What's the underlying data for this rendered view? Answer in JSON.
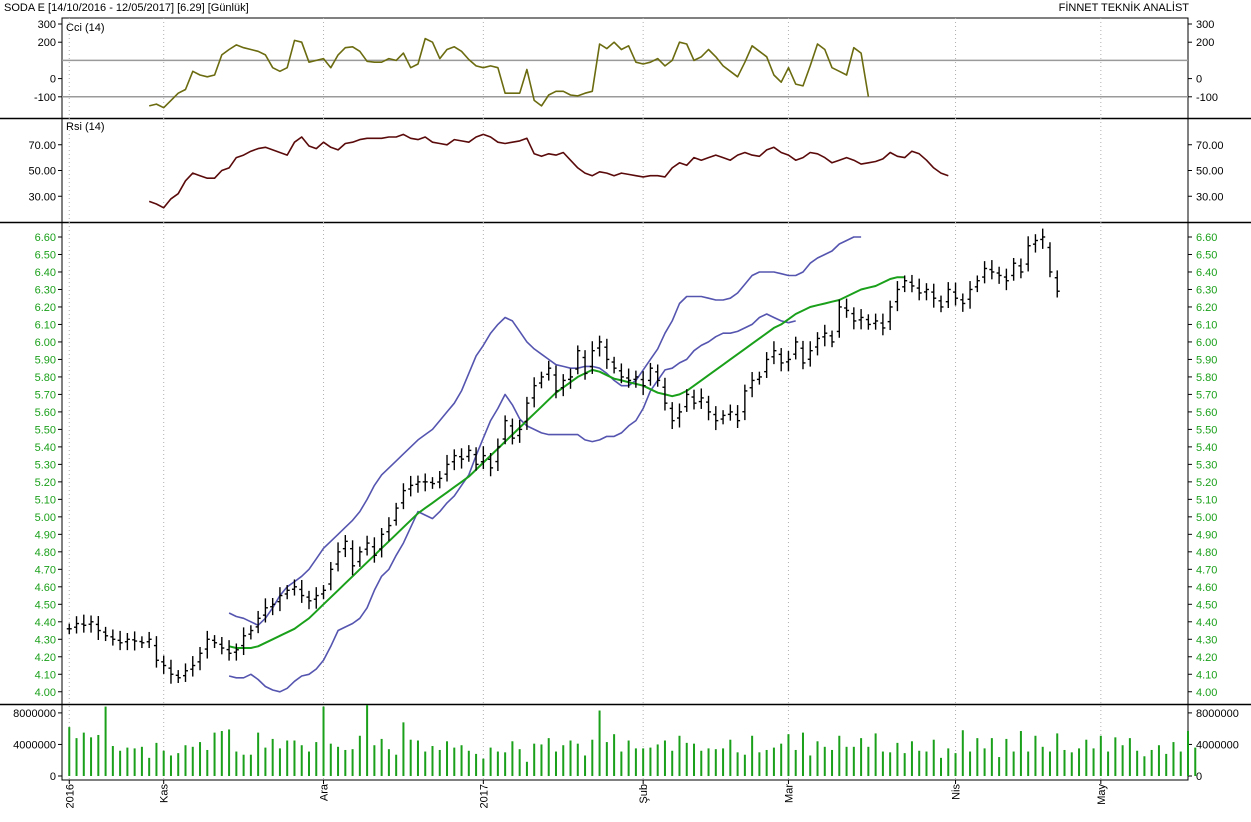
{
  "header": {
    "symbol": "SODA",
    "market": "E",
    "range": "[14/10/2016 - 12/05/2017]",
    "last": "[6.29]",
    "period": "[Günlük]",
    "brand": "FİNNET TEKNİK ANALİST"
  },
  "colors": {
    "price_bar": "#000000",
    "boll_band": "#5555b0",
    "boll_mid": "#1aa01a",
    "cci_line": "#6b6b10",
    "rsi_line": "#5a0a0a",
    "volume_bar": "#1aa01a",
    "axis_text_price": "#1aa01a",
    "ref_line": "#9a9a9a"
  },
  "chart_data": [
    {
      "type": "line",
      "panel": "CCI",
      "title": "Cci (14)",
      "ylim": [
        -200,
        300
      ],
      "ticks": [
        300,
        200,
        0,
        -100
      ],
      "reference_lines": [
        100,
        -100
      ],
      "x_start_index": 11,
      "values": [
        -150,
        -140,
        -160,
        -120,
        -80,
        -60,
        40,
        20,
        10,
        20,
        130,
        160,
        185,
        170,
        160,
        150,
        130,
        60,
        40,
        60,
        210,
        200,
        90,
        100,
        110,
        60,
        130,
        170,
        175,
        150,
        95,
        90,
        90,
        110,
        100,
        140,
        60,
        80,
        220,
        200,
        110,
        160,
        175,
        150,
        105,
        70,
        60,
        70,
        60,
        -80,
        -80,
        -80,
        50,
        -120,
        -150,
        -90,
        -70,
        -70,
        -90,
        -95,
        -80,
        -70,
        190,
        165,
        200,
        160,
        180,
        90,
        80,
        90,
        110,
        70,
        100,
        200,
        190,
        100,
        120,
        160,
        120,
        70,
        40,
        10,
        90,
        180,
        150,
        120,
        20,
        -20,
        60,
        -30,
        -40,
        70,
        190,
        160,
        60,
        40,
        20,
        170,
        140,
        -100
      ]
    },
    {
      "type": "line",
      "panel": "RSI",
      "title": "Rsi (14)",
      "ylim": [
        10,
        90
      ],
      "ticks": [
        70,
        50,
        30
      ],
      "x_start_index": 11,
      "values": [
        26,
        24,
        21,
        28,
        32,
        42,
        48,
        46,
        44,
        44,
        50,
        52,
        60,
        62,
        65,
        67,
        68,
        66,
        64,
        62,
        72,
        76,
        69,
        67,
        72,
        68,
        66,
        71,
        72,
        74,
        75,
        75,
        75,
        76,
        76,
        78,
        75,
        74,
        76,
        72,
        71,
        70,
        74,
        73,
        72,
        76,
        78,
        76,
        72,
        71,
        72,
        73,
        75,
        63,
        61,
        63,
        62,
        64,
        58,
        52,
        48,
        46,
        49,
        48,
        46,
        48,
        47,
        46,
        45,
        46,
        46,
        45,
        52,
        56,
        54,
        60,
        58,
        60,
        62,
        60,
        58,
        62,
        64,
        62,
        61,
        66,
        68,
        64,
        62,
        58,
        60,
        64,
        63,
        60,
        56,
        58,
        60,
        58,
        55,
        56,
        57,
        59,
        64,
        61,
        60,
        65,
        63,
        58,
        52,
        48,
        46
      ]
    },
    {
      "type": "bar",
      "panel": "Price",
      "subtype": "ohlc",
      "title": "",
      "ylim": [
        3.93,
        6.68
      ],
      "ticks": [
        6.6,
        6.5,
        6.4,
        6.3,
        6.2,
        6.1,
        6.0,
        5.9,
        5.8,
        5.7,
        5.6,
        5.5,
        5.4,
        5.3,
        5.2,
        5.1,
        5.0,
        4.9,
        4.8,
        4.7,
        4.6,
        4.5,
        4.4,
        4.3,
        4.2,
        4.1,
        4.0
      ],
      "close": [
        4.36,
        4.39,
        4.38,
        4.4,
        4.35,
        4.32,
        4.3,
        4.28,
        4.3,
        4.29,
        4.28,
        4.3,
        4.18,
        4.15,
        4.1,
        4.08,
        4.12,
        4.15,
        4.22,
        4.3,
        4.28,
        4.25,
        4.22,
        4.24,
        4.32,
        4.35,
        4.42,
        4.48,
        4.5,
        4.55,
        4.58,
        4.6,
        4.55,
        4.52,
        4.55,
        4.58,
        4.7,
        4.8,
        4.86,
        4.72,
        4.8,
        4.85,
        4.78,
        4.9,
        4.95,
        5.05,
        5.15,
        5.18,
        5.2,
        5.2,
        5.19,
        5.22,
        5.3,
        5.35,
        5.33,
        5.38,
        5.3,
        5.35,
        5.28,
        5.4,
        5.55,
        5.45,
        5.5,
        5.65,
        5.75,
        5.8,
        5.85,
        5.72,
        5.78,
        5.8,
        5.95,
        5.82,
        5.95,
        6.0,
        5.9,
        5.85,
        5.8,
        5.78,
        5.8,
        5.75,
        5.85,
        5.78,
        5.65,
        5.55,
        5.6,
        5.7,
        5.65,
        5.68,
        5.6,
        5.55,
        5.58,
        5.6,
        5.55,
        5.72,
        5.78,
        5.8,
        5.9,
        5.95,
        5.88,
        5.9,
        6.0,
        5.88,
        5.95,
        6.02,
        6.05,
        6.0,
        6.2,
        6.18,
        6.12,
        6.14,
        6.1,
        6.12,
        6.08,
        6.2,
        6.3,
        6.35,
        6.32,
        6.28,
        6.3,
        6.25,
        6.2,
        6.3,
        6.25,
        6.22,
        6.3,
        6.35,
        6.42,
        6.4,
        6.38,
        6.35,
        6.45,
        6.4,
        6.55,
        6.58,
        6.6,
        6.4,
        6.29
      ],
      "bollinger_start_index": 22,
      "bollinger_mid": [
        4.26,
        4.25,
        4.25,
        4.25,
        4.26,
        4.28,
        4.3,
        4.32,
        4.34,
        4.36,
        4.39,
        4.42,
        4.46,
        4.5,
        4.54,
        4.58,
        4.62,
        4.66,
        4.7,
        4.74,
        4.78,
        4.82,
        4.86,
        4.9,
        4.94,
        4.98,
        5.02,
        5.05,
        5.08,
        5.11,
        5.14,
        5.17,
        5.2,
        5.23,
        5.27,
        5.31,
        5.35,
        5.39,
        5.43,
        5.47,
        5.51,
        5.55,
        5.59,
        5.63,
        5.67,
        5.71,
        5.74,
        5.77,
        5.8,
        5.82,
        5.84,
        5.83,
        5.81,
        5.79,
        5.78,
        5.77,
        5.76,
        5.75,
        5.73,
        5.71,
        5.7,
        5.69,
        5.7,
        5.72,
        5.75,
        5.78,
        5.81,
        5.84,
        5.87,
        5.9,
        5.93,
        5.96,
        5.99,
        6.02,
        6.05,
        6.08,
        6.1,
        6.13,
        6.16,
        6.18,
        6.2,
        6.21,
        6.22,
        6.23,
        6.24,
        6.26,
        6.28,
        6.3,
        6.31,
        6.32,
        6.34,
        6.36,
        6.37,
        6.37
      ],
      "bollinger_upper": [
        4.45,
        4.43,
        4.42,
        4.4,
        4.38,
        4.42,
        4.48,
        4.55,
        4.6,
        4.63,
        4.66,
        4.7,
        4.76,
        4.82,
        4.86,
        4.9,
        4.94,
        4.98,
        5.03,
        5.1,
        5.18,
        5.24,
        5.28,
        5.32,
        5.36,
        5.4,
        5.44,
        5.47,
        5.5,
        5.55,
        5.6,
        5.65,
        5.72,
        5.82,
        5.92,
        5.98,
        6.05,
        6.1,
        6.14,
        6.12,
        6.06,
        6.0,
        5.96,
        5.93,
        5.9,
        5.87,
        5.86,
        5.85,
        5.85,
        5.86,
        5.86,
        5.85,
        5.82,
        5.78,
        5.75,
        5.75,
        5.78,
        5.84,
        5.9,
        5.96,
        6.05,
        6.12,
        6.22,
        6.26,
        6.26,
        6.26,
        6.25,
        6.24,
        6.24,
        6.25,
        6.28,
        6.33,
        6.38,
        6.4,
        6.4,
        6.4,
        6.39,
        6.38,
        6.38,
        6.4,
        6.45,
        6.48,
        6.5,
        6.52,
        6.56,
        6.58,
        6.6,
        6.6
      ],
      "bollinger_lower": [
        4.09,
        4.08,
        4.08,
        4.1,
        4.07,
        4.03,
        4.01,
        4.0,
        4.02,
        4.06,
        4.09,
        4.1,
        4.13,
        4.18,
        4.26,
        4.35,
        4.37,
        4.39,
        4.42,
        4.48,
        4.58,
        4.66,
        4.7,
        4.78,
        4.85,
        4.94,
        5.03,
        5.01,
        4.99,
        5.03,
        5.08,
        5.12,
        5.18,
        5.24,
        5.35,
        5.45,
        5.55,
        5.62,
        5.7,
        5.64,
        5.56,
        5.52,
        5.5,
        5.48,
        5.47,
        5.47,
        5.47,
        5.47,
        5.47,
        5.44,
        5.43,
        5.44,
        5.46,
        5.46,
        5.48,
        5.52,
        5.55,
        5.62,
        5.72,
        5.78,
        5.84,
        5.85,
        5.88,
        5.9,
        5.95,
        5.98,
        6.0,
        6.03,
        6.05,
        6.05,
        6.06,
        6.08,
        6.1,
        6.14,
        6.16,
        6.14,
        6.12,
        6.11,
        6.12
      ]
    },
    {
      "type": "bar",
      "panel": "Volume",
      "title": "",
      "ylim": [
        0,
        9000000
      ],
      "ticks": [
        8000000,
        4000000,
        0
      ],
      "values": [
        6200000,
        4800000,
        5500000,
        4900000,
        5200000,
        8800000,
        3800000,
        3200000,
        3600000,
        3500000,
        3700000,
        2300000,
        4200000,
        3200000,
        2600000,
        2900000,
        3900000,
        3700000,
        4300000,
        3300000,
        5500000,
        5700000,
        5900000,
        3100000,
        2700000,
        2700000,
        5500000,
        3600000,
        4700000,
        3500000,
        4500000,
        4500000,
        3900000,
        3100000,
        4300000,
        8800000,
        4100000,
        3700000,
        3300000,
        3400000,
        5100000,
        9000000,
        3900000,
        4700000,
        3400000,
        2700000,
        6800000,
        4600000,
        4500000,
        3100000,
        3800000,
        3300000,
        4400000,
        3600000,
        3900000,
        3200000,
        2800000,
        2200000,
        3600000,
        3100000,
        3000000,
        4400000,
        3400000,
        1800000,
        4100000,
        4000000,
        4800000,
        3100000,
        3900000,
        4500000,
        4100000,
        2600000,
        4600000,
        8300000,
        4300000,
        5300000,
        3100000,
        4500000,
        3500000,
        3500000,
        3600000,
        4000000,
        4500000,
        3200000,
        5100000,
        4200000,
        4100000,
        3200000,
        3500000,
        3400000,
        3500000,
        4600000,
        3000000,
        2700000,
        5100000,
        3000000,
        3300000,
        3600000,
        4100000,
        5300000,
        3300000,
        5500000,
        2600000,
        4400000,
        3700000,
        3300000,
        5100000,
        3700000,
        3700000,
        4800000,
        3700000,
        5400000,
        3100000,
        3000000,
        4200000,
        2900000,
        4400000,
        3200000,
        3100000,
        4600000,
        2300000,
        3500000,
        2900000,
        5800000,
        3100000,
        4800000,
        3500000,
        4800000,
        2400000,
        4700000,
        3100000,
        5700000,
        3100000,
        5100000,
        3700000,
        3100000,
        5400000,
        3300000,
        3000000,
        3500000,
        4600000,
        3500000,
        5100000,
        3100000,
        4900000,
        3900000,
        4800000,
        3200000,
        2500000,
        3300000,
        3900000,
        2800000,
        4300000,
        3100000,
        5700000,
        3600000
      ]
    }
  ],
  "x_axis": {
    "labels": [
      {
        "text": "2016",
        "index": 0
      },
      {
        "text": "Kas",
        "index": 13
      },
      {
        "text": "Ara",
        "index": 35
      },
      {
        "text": "2017",
        "index": 57
      },
      {
        "text": "Şub",
        "index": 79
      },
      {
        "text": "Mar",
        "index": 99
      },
      {
        "text": "Nis",
        "index": 122
      },
      {
        "text": "May",
        "index": 142
      }
    ],
    "total_bars": 152
  },
  "panels": [
    {
      "name": "cci",
      "label": "Cci (14)"
    },
    {
      "name": "rsi",
      "label": "Rsi (14)"
    },
    {
      "name": "price",
      "label": ""
    },
    {
      "name": "volume",
      "label": ""
    }
  ]
}
